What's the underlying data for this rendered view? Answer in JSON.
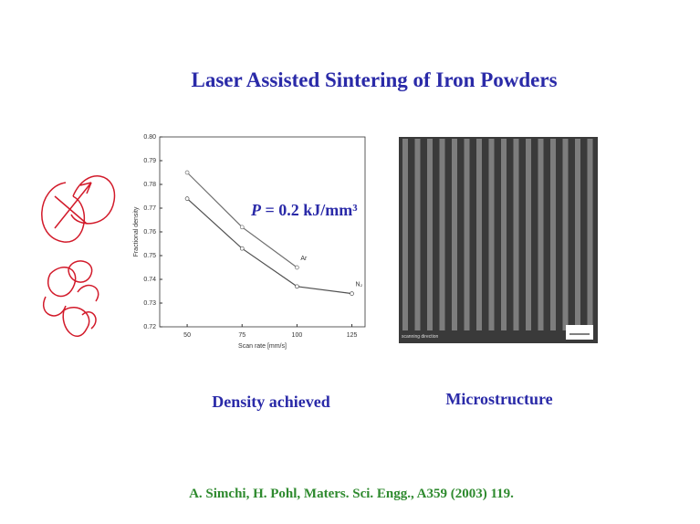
{
  "slide": {
    "title": "Laser Assisted Sintering of Iron Powders",
    "caption_left": "Density achieved",
    "caption_right": "Microstructure",
    "image_label": "scanning direction",
    "citation": "A. Simchi, H. Pohl, Maters. Sci. Engg., A359 (2003) 119."
  },
  "chart_data": {
    "type": "line",
    "xlabel": "Scan rate [mm/s]",
    "ylabel": "Fractional density",
    "annotation_symbol": "P",
    "annotation": " = 0.2 kJ/mm³",
    "x": [
      50,
      75,
      100,
      125
    ],
    "series": [
      {
        "name": "Ar",
        "color": "#707070",
        "values": [
          0.785,
          0.762,
          0.745,
          null
        ]
      },
      {
        "name": "N₂",
        "color": "#505050",
        "values": [
          0.774,
          0.753,
          0.737,
          0.734
        ]
      }
    ],
    "xlim": [
      37.5,
      131
    ],
    "xticks": [
      50,
      75,
      100,
      125
    ],
    "ylim": [
      0.72,
      0.8
    ],
    "yticks": [
      0.72,
      0.73,
      0.74,
      0.75,
      0.76,
      0.77,
      0.78,
      0.79,
      {
        "value": 0.8,
        "label": "0.80"
      }
    ]
  }
}
